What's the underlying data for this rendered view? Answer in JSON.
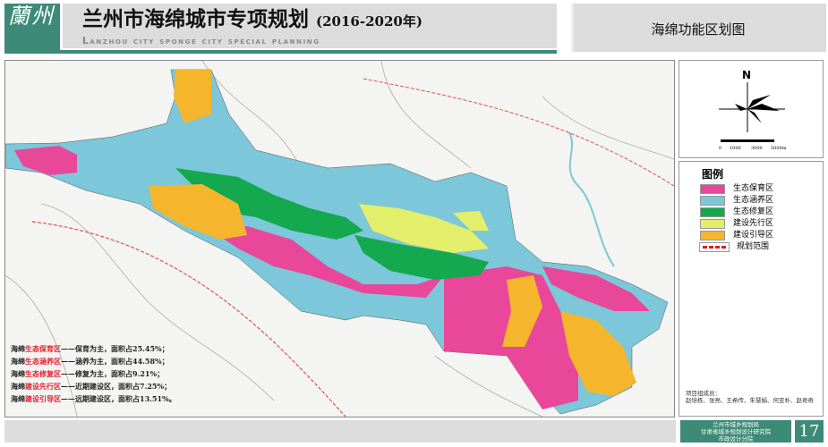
{
  "header": {
    "logo_text": "蘭州",
    "title": "兰州市海绵城市专项规划",
    "years": "(2016-2020年)",
    "subtitle": "Lanzhou city sponge city special planning",
    "map_name": "海绵功能区划图"
  },
  "compass": {
    "north_label": "N",
    "scale_labels": [
      "0",
      "1000",
      "3000",
      "5000m"
    ]
  },
  "legend": {
    "title": "图例",
    "items": [
      {
        "label": "生态保育区",
        "color": "#e8479a"
      },
      {
        "label": "生态涵养区",
        "color": "#7cc7d9"
      },
      {
        "label": "生态修复区",
        "color": "#14a84f"
      },
      {
        "label": "建设先行区",
        "color": "#e3ee6a"
      },
      {
        "label": "建设引导区",
        "color": "#f5b52c"
      },
      {
        "label": "规划范围",
        "color": "#d42020",
        "style": "dashed"
      }
    ]
  },
  "descriptions": [
    {
      "prefix": "海绵",
      "zone": "生态保育区",
      "text": "——保育为主，面积占25.45%；"
    },
    {
      "prefix": "海绵",
      "zone": "生态涵养区",
      "text": "——涵养为主，面积占44.58%；"
    },
    {
      "prefix": "海绵",
      "zone": "生态修复区",
      "text": "——修复为主，面积占9.21%；"
    },
    {
      "prefix": "海绵",
      "zone": "建设先行区",
      "text": "——近期建设区，面积占7.25%；"
    },
    {
      "prefix": "海绵",
      "zone": "建设引导区",
      "text": "——远期建设区，面积占13.51%。"
    }
  ],
  "credits": {
    "label": "项目组成员：",
    "members": "赵培栋、张亮、王希传、朱慧娟、何亚朴、赵奇奇"
  },
  "footer": {
    "lines": [
      "兰州市城乡规划局",
      "甘肃省城乡规划设计研究院",
      "市政设计分院"
    ],
    "page": "17"
  }
}
